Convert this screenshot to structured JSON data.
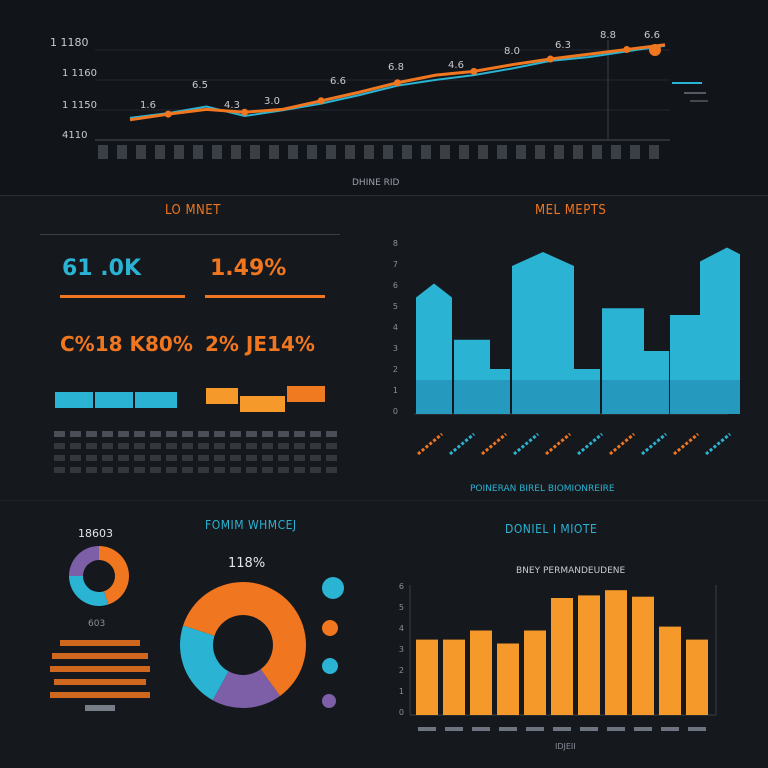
{
  "colors": {
    "orange": "#f0761f",
    "blue": "#2ab3d3",
    "background": "#15181d",
    "purple": "#7d5fa8",
    "teal": "#3fb8c8"
  },
  "top_chart": {
    "y_ticks": [
      "4110",
      "1 1150",
      "1 1160",
      "1 1180"
    ],
    "xlabel": "DHINE RID"
  },
  "kpi_panel": {
    "title": "LO MNET",
    "kpi1": "61 .0K",
    "kpi2": "1.49%",
    "kpi3": "C%18 K80%",
    "kpi4": "2% JE14%"
  },
  "bar_panel": {
    "title": "MEL MEPTS",
    "xlabel": "POINERAN BIREL BIOMIONREIRE"
  },
  "donut_small": {
    "label": "18603",
    "sub": "603"
  },
  "donut_large": {
    "title": "FOMIM WHMCEJ",
    "pct": "118%"
  },
  "bottom_bar": {
    "title": "DONIEL I MIOTE",
    "subtitle": "BNEY PERMANDEUDENE",
    "xlabel": "IDJEII"
  },
  "chart_data": [
    {
      "type": "line",
      "series": [
        {
          "values": [
            18,
            23,
            30,
            20,
            26,
            33,
            42,
            52,
            58,
            63,
            70,
            78,
            82,
            88,
            94
          ]
        },
        {
          "values": [
            16,
            22,
            27,
            24,
            27,
            36,
            45,
            55,
            63,
            67,
            74,
            80,
            85,
            90,
            95
          ]
        }
      ],
      "point_labels": [
        "1.6",
        "6.5",
        "4.3",
        "3.0",
        "6.6",
        "6.8",
        "4.6",
        "8.0",
        "6.3",
        "8.8",
        "6.6"
      ]
    },
    {
      "type": "bar",
      "values": [
        58,
        33,
        20,
        72,
        20,
        47,
        28,
        44,
        74
      ]
    },
    {
      "type": "bar",
      "values": [
        58,
        58,
        65,
        55,
        65,
        90,
        92,
        96,
        91,
        68,
        58
      ]
    },
    {
      "type": "pie",
      "values": [
        40,
        18,
        22,
        20
      ]
    }
  ]
}
